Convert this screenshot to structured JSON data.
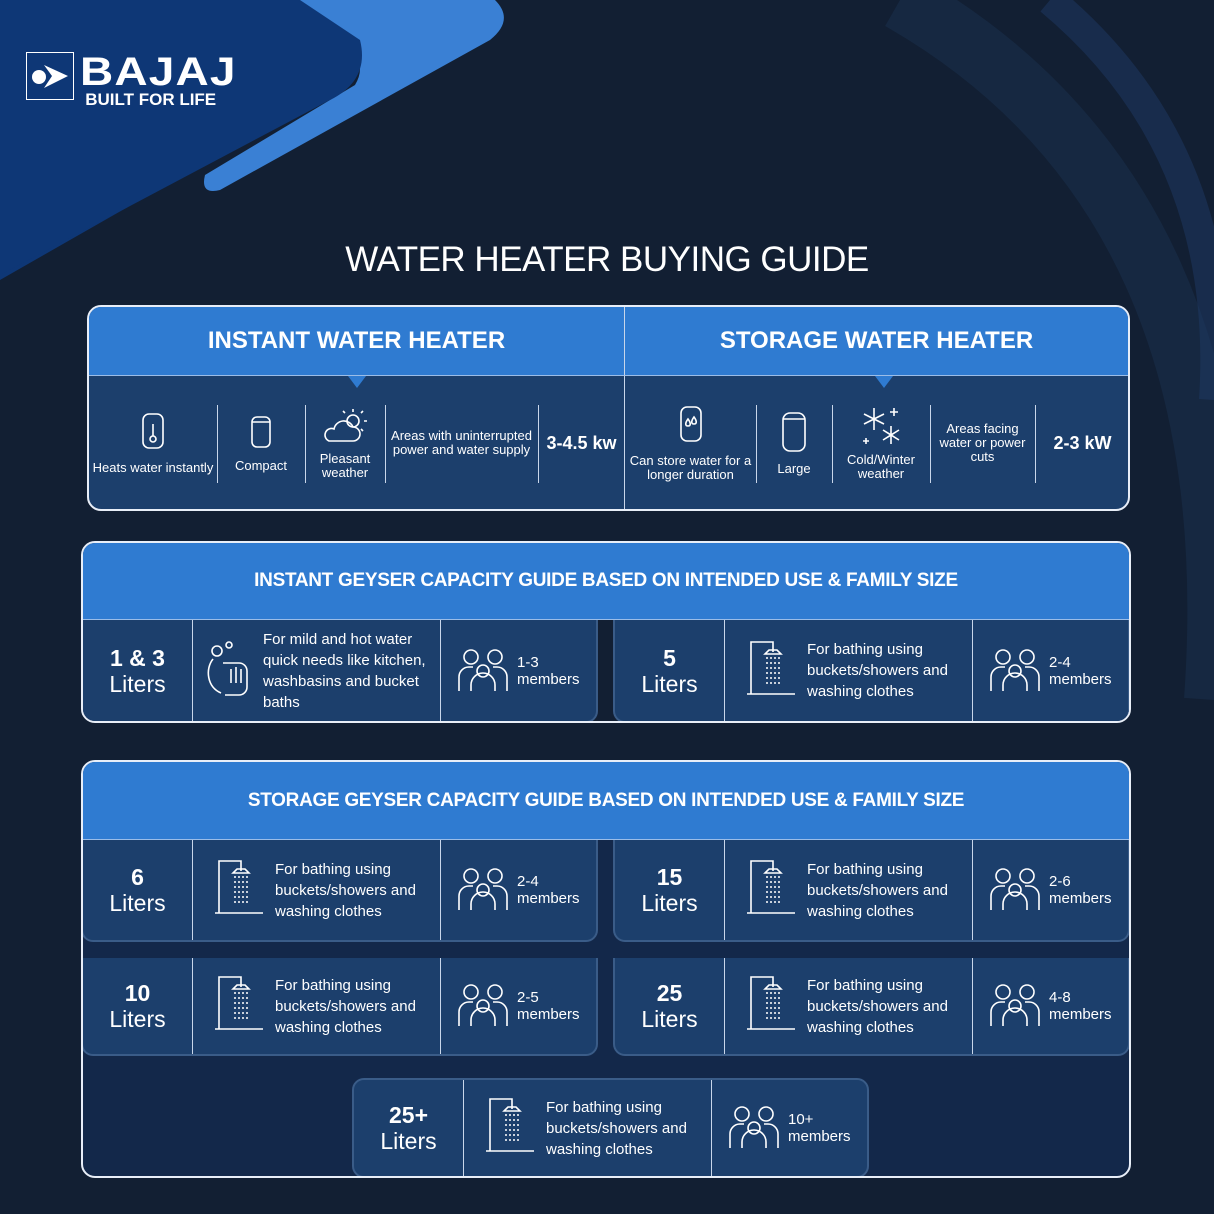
{
  "brand": {
    "name": "BAJAJ",
    "tagline": "BUILT FOR LIFE"
  },
  "colors": {
    "background": "#121f33",
    "card": "#1c3f6c",
    "header": "#2f7bd1",
    "accent_light": "#3a80d4"
  },
  "title": "WATER HEATER BUYING GUIDE",
  "comparison": {
    "instant": {
      "title": "INSTANT WATER HEATER",
      "features": [
        {
          "icon": "heater-thermometer-icon",
          "text": "Heats water instantly"
        },
        {
          "icon": "compact-heater-icon",
          "text": "Compact"
        },
        {
          "icon": "cloud-sun-icon",
          "text": "Pleasant weather"
        },
        {
          "icon": "",
          "text": "Areas with uninterrupted power and water supply"
        },
        {
          "icon": "",
          "text": "3-4.5 kw"
        }
      ]
    },
    "storage": {
      "title": "STORAGE WATER HEATER",
      "features": [
        {
          "icon": "heater-droplets-icon",
          "text": "Can store water for a longer duration"
        },
        {
          "icon": "large-heater-icon",
          "text": "Large"
        },
        {
          "icon": "snowflake-icon",
          "text": "Cold/Winter weather"
        },
        {
          "icon": "",
          "text": "Areas facing water or power cuts"
        },
        {
          "icon": "",
          "text": "2-3 kW"
        }
      ]
    }
  },
  "instant_guide": {
    "title": "INSTANT GEYSER CAPACITY GUIDE BASED ON INTENDED USE & FAMILY SIZE",
    "rows": [
      {
        "capacity": "1 & 3",
        "unit": "Liters",
        "icon": "hand-washing-icon",
        "use": "For mild and hot water quick needs like kitchen, washbasins and bucket baths",
        "members": "1-3",
        "members_label": "members",
        "family_icon": "family-icon"
      },
      {
        "capacity": "5",
        "unit": "Liters",
        "icon": "shower-icon",
        "use": "For bathing using buckets/showers and washing clothes",
        "members": "2-4",
        "members_label": "members",
        "family_icon": "family-icon"
      }
    ]
  },
  "storage_guide": {
    "title": "STORAGE GEYSER CAPACITY GUIDE BASED ON INTENDED USE & FAMILY SIZE",
    "rows": [
      {
        "capacity": "6",
        "unit": "Liters",
        "icon": "shower-icon",
        "use": "For bathing using buckets/showers and washing clothes",
        "members": "2-4",
        "members_label": "members",
        "family_icon": "family-icon"
      },
      {
        "capacity": "15",
        "unit": "Liters",
        "icon": "shower-icon",
        "use": "For bathing using buckets/showers and washing clothes",
        "members": "2-6",
        "members_label": "members",
        "family_icon": "family-icon"
      },
      {
        "capacity": "10",
        "unit": "Liters",
        "icon": "shower-icon",
        "use": "For bathing using buckets/showers and washing clothes",
        "members": "2-5",
        "members_label": "members",
        "family_icon": "family-icon"
      },
      {
        "capacity": "25",
        "unit": "Liters",
        "icon": "shower-icon",
        "use": "For bathing using buckets/showers and washing clothes",
        "members": "4-8",
        "members_label": "members",
        "family_icon": "family-icon"
      },
      {
        "capacity": "25+",
        "unit": "Liters",
        "icon": "shower-icon",
        "use": "For bathing using buckets/showers and washing clothes",
        "members": "10+",
        "members_label": "members",
        "family_icon": "family-icon"
      }
    ]
  }
}
